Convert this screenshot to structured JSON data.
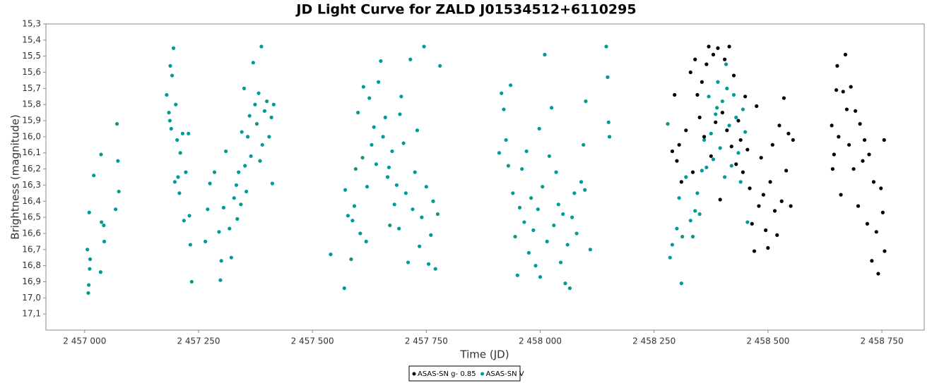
{
  "chart_data": {
    "type": "scatter",
    "title": "JD Light Curve for ZALD J01534512+6110295",
    "x_label": "Time (JD)",
    "y_label": "Brightness (magnitude)",
    "xlim": [
      2456915,
      2458843
    ],
    "ylim": [
      17.2,
      15.3
    ],
    "xticks": [
      {
        "value": 2457000,
        "label": "2 457 000"
      },
      {
        "value": 2457250,
        "label": "2 457 250"
      },
      {
        "value": 2457500,
        "label": "2 457 500"
      },
      {
        "value": 2457750,
        "label": "2 457 750"
      },
      {
        "value": 2458000,
        "label": "2 458 000"
      },
      {
        "value": 2458250,
        "label": "2 458 250"
      },
      {
        "value": 2458500,
        "label": "2 458 500"
      },
      {
        "value": 2458750,
        "label": "2 458 750"
      }
    ],
    "yticks": [
      {
        "value": 15.3,
        "label": "15,3"
      },
      {
        "value": 15.4,
        "label": "15,4"
      },
      {
        "value": 15.5,
        "label": "15,5"
      },
      {
        "value": 15.6,
        "label": "15,6"
      },
      {
        "value": 15.7,
        "label": "15,7"
      },
      {
        "value": 15.8,
        "label": "15,8"
      },
      {
        "value": 15.9,
        "label": "15,9"
      },
      {
        "value": 16.0,
        "label": "16,0"
      },
      {
        "value": 16.1,
        "label": "16,1"
      },
      {
        "value": 16.2,
        "label": "16,2"
      },
      {
        "value": 16.3,
        "label": "16,3"
      },
      {
        "value": 16.4,
        "label": "16,4"
      },
      {
        "value": 16.5,
        "label": "16,5"
      },
      {
        "value": 16.6,
        "label": "16,6"
      },
      {
        "value": 16.7,
        "label": "16,7"
      },
      {
        "value": 16.8,
        "label": "16,8"
      },
      {
        "value": 16.9,
        "label": "16,9"
      },
      {
        "value": 17.0,
        "label": "17,0"
      },
      {
        "value": 17.1,
        "label": "17,1"
      }
    ],
    "grid": false,
    "legend_position": "bottom",
    "series": [
      {
        "name": "ASAS-SN V",
        "color": "#009b95",
        "x": [
          2457006,
          2457008,
          2457010,
          2457011,
          2457020,
          2457036,
          2457037,
          2457042,
          2457043,
          2457068,
          2457071,
          2457073,
          2457075,
          2457009,
          2457012,
          2457035,
          2457180,
          2457185,
          2457188,
          2457192,
          2457195,
          2457190,
          2457200,
          2457203,
          2457205,
          2457208,
          2457210,
          2457215,
          2457218,
          2457222,
          2457230,
          2457232,
          2457235,
          2457228,
          2457187,
          2457198,
          2457265,
          2457270,
          2457275,
          2457285,
          2457295,
          2457298,
          2457300,
          2457305,
          2457310,
          2457318,
          2457322,
          2457328,
          2457333,
          2457338,
          2457345,
          2457350,
          2457352,
          2457358,
          2457362,
          2457365,
          2457370,
          2457374,
          2457378,
          2457382,
          2457388,
          2457390,
          2457395,
          2457400,
          2457405,
          2457410,
          2457412,
          2457415,
          2457343,
          2457355,
          2457335,
          2457385,
          2457540,
          2457570,
          2457572,
          2457578,
          2457585,
          2457592,
          2457595,
          2457600,
          2457605,
          2457610,
          2457612,
          2457620,
          2457625,
          2457630,
          2457635,
          2457640,
          2457645,
          2457650,
          2457655,
          2457660,
          2457665,
          2457670,
          2457675,
          2457680,
          2457685,
          2457690,
          2457695,
          2457700,
          2457705,
          2457710,
          2457715,
          2457720,
          2457725,
          2457730,
          2457735,
          2457740,
          2457745,
          2457750,
          2457755,
          2457760,
          2457765,
          2457770,
          2457775,
          2457780,
          2457588,
          2457618,
          2457668,
          2457692,
          2457910,
          2457915,
          2457920,
          2457925,
          2457930,
          2457935,
          2457940,
          2457945,
          2457950,
          2457955,
          2457960,
          2457965,
          2457970,
          2457975,
          2457980,
          2457985,
          2457990,
          2457995,
          2458000,
          2458005,
          2458010,
          2458015,
          2458020,
          2458025,
          2458030,
          2458035,
          2458040,
          2458045,
          2458050,
          2458055,
          2458060,
          2458065,
          2458070,
          2458075,
          2458080,
          2458090,
          2458095,
          2458100,
          2458110,
          2458145,
          2458148,
          2458150,
          2458152,
          2458098,
          2457998,
          2458280,
          2458285,
          2458290,
          2458300,
          2458305,
          2458310,
          2458312,
          2458320,
          2458330,
          2458335,
          2458340,
          2458345,
          2458350,
          2458355,
          2458360,
          2458365,
          2458370,
          2458375,
          2458380,
          2458385,
          2458390,
          2458395,
          2458400,
          2458405,
          2458410,
          2458415,
          2458420,
          2458425,
          2458430,
          2458435,
          2458440,
          2458445,
          2458450,
          2458455,
          2458408,
          2458388
        ],
        "values": [
          16.7,
          16.97,
          16.47,
          16.82,
          16.24,
          16.11,
          16.53,
          16.55,
          16.65,
          16.45,
          15.92,
          16.15,
          16.34,
          16.92,
          16.76,
          16.84,
          15.74,
          15.85,
          15.56,
          15.62,
          15.45,
          15.95,
          15.8,
          16.02,
          16.25,
          16.35,
          16.1,
          15.98,
          16.52,
          16.22,
          16.49,
          16.67,
          16.9,
          15.98,
          15.9,
          16.28,
          16.65,
          16.45,
          16.29,
          16.22,
          16.59,
          16.89,
          16.77,
          16.44,
          16.09,
          16.57,
          16.75,
          16.38,
          16.3,
          16.22,
          15.97,
          15.7,
          16.18,
          16.0,
          15.87,
          16.12,
          15.54,
          15.8,
          15.92,
          15.73,
          15.44,
          16.05,
          15.84,
          15.78,
          16.0,
          15.88,
          16.29,
          15.8,
          16.42,
          16.34,
          16.51,
          16.15,
          16.73,
          16.94,
          16.33,
          16.49,
          16.76,
          16.43,
          16.2,
          15.85,
          16.6,
          16.13,
          15.69,
          16.31,
          15.76,
          16.05,
          15.94,
          16.17,
          15.66,
          15.53,
          16.0,
          15.88,
          16.25,
          16.55,
          16.09,
          16.42,
          16.3,
          16.57,
          15.75,
          16.04,
          16.35,
          16.78,
          15.52,
          16.45,
          16.22,
          15.96,
          16.68,
          16.5,
          15.44,
          16.31,
          16.79,
          16.61,
          16.4,
          16.82,
          16.48,
          15.56,
          16.52,
          16.65,
          16.19,
          15.86,
          16.1,
          15.73,
          15.83,
          16.02,
          16.18,
          15.68,
          16.35,
          16.62,
          16.86,
          16.44,
          16.2,
          16.53,
          16.09,
          16.72,
          16.38,
          16.58,
          16.8,
          16.45,
          16.87,
          16.31,
          15.49,
          16.65,
          16.12,
          15.82,
          16.55,
          16.22,
          16.42,
          16.78,
          16.48,
          16.91,
          16.67,
          16.94,
          16.5,
          16.35,
          16.6,
          16.28,
          16.05,
          15.78,
          16.7,
          15.44,
          15.63,
          15.91,
          16.0,
          16.33,
          15.95,
          15.92,
          16.75,
          16.67,
          16.57,
          16.38,
          16.91,
          16.62,
          16.25,
          16.52,
          16.62,
          16.46,
          16.35,
          16.48,
          16.21,
          16.02,
          16.19,
          15.75,
          15.98,
          16.14,
          15.86,
          15.66,
          16.07,
          15.78,
          16.25,
          15.7,
          15.93,
          16.18,
          15.74,
          15.88,
          16.1,
          16.28,
          15.83,
          15.97,
          16.53,
          15.55,
          15.82
        ]
      },
      {
        "name": "ASAS-SN g- 0.85",
        "color": "#000000",
        "x": [
          2458290,
          2458295,
          2458300,
          2458305,
          2458310,
          2458320,
          2458330,
          2458335,
          2458340,
          2458345,
          2458350,
          2458355,
          2458360,
          2458365,
          2458370,
          2458375,
          2458380,
          2458385,
          2458390,
          2458395,
          2458400,
          2458405,
          2458410,
          2458415,
          2458420,
          2458425,
          2458430,
          2458435,
          2458440,
          2458445,
          2458450,
          2458455,
          2458460,
          2458465,
          2458470,
          2458475,
          2458480,
          2458485,
          2458490,
          2458495,
          2458500,
          2458505,
          2458510,
          2458515,
          2458520,
          2458525,
          2458530,
          2458535,
          2458540,
          2458545,
          2458550,
          2458555,
          2458640,
          2458642,
          2458645,
          2458650,
          2458652,
          2458655,
          2458660,
          2458665,
          2458670,
          2458673,
          2458678,
          2458682,
          2458688,
          2458692,
          2458698,
          2458702,
          2458708,
          2458712,
          2458718,
          2458722,
          2458728,
          2458732,
          2458738,
          2458742,
          2458748,
          2458752,
          2458756,
          2458755
        ],
        "values": [
          16.09,
          15.74,
          16.15,
          16.05,
          16.28,
          15.96,
          15.6,
          16.22,
          15.52,
          15.74,
          15.88,
          15.66,
          16.0,
          15.55,
          15.44,
          16.12,
          15.49,
          15.91,
          15.45,
          16.39,
          15.85,
          15.52,
          15.96,
          15.44,
          16.06,
          15.62,
          16.17,
          15.9,
          16.02,
          16.22,
          15.75,
          16.08,
          16.32,
          16.54,
          16.71,
          15.81,
          16.43,
          16.13,
          16.36,
          16.58,
          16.69,
          16.28,
          16.05,
          16.46,
          16.61,
          15.93,
          16.4,
          15.76,
          16.21,
          15.98,
          16.43,
          16.02,
          15.93,
          16.2,
          16.11,
          15.71,
          15.56,
          16.0,
          16.36,
          15.72,
          15.49,
          15.83,
          16.05,
          15.69,
          16.2,
          15.84,
          16.43,
          15.92,
          16.15,
          16.02,
          16.54,
          16.11,
          16.77,
          16.28,
          16.59,
          16.85,
          16.32,
          16.47,
          16.71,
          16.02
        ]
      }
    ]
  }
}
